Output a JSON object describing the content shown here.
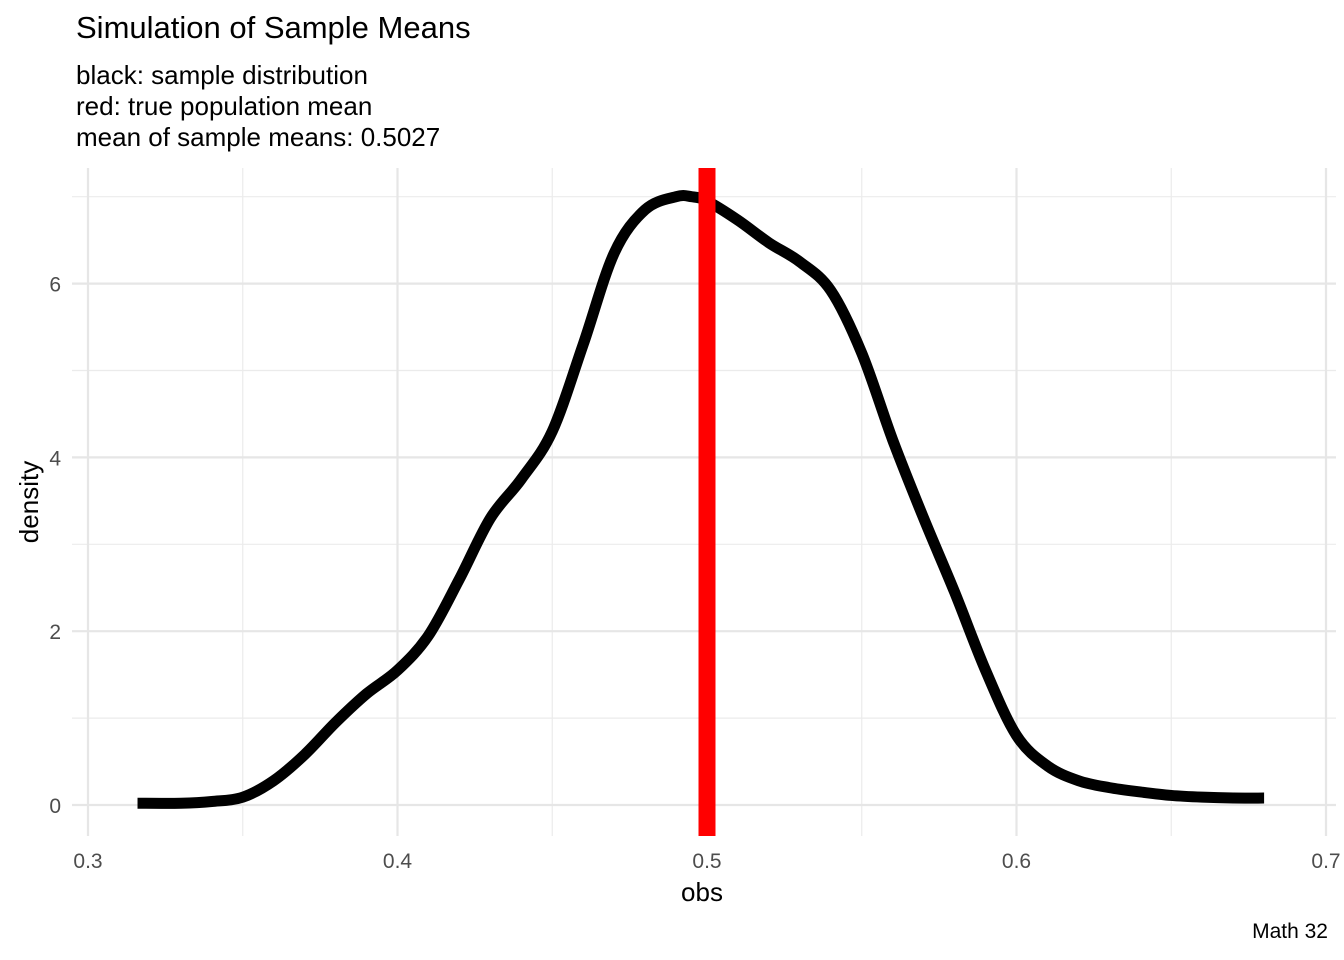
{
  "chart_data": {
    "type": "line",
    "title": "Simulation of Sample Means",
    "subtitle_lines": [
      "black: sample distribution",
      "red: true population mean",
      "mean of sample means:  0.5027"
    ],
    "caption": "Math 32",
    "xlabel": "obs",
    "ylabel": "density",
    "xlim": [
      0.3,
      0.7
    ],
    "ylim": [
      0,
      7.3
    ],
    "x_ticks": [
      0.3,
      0.4,
      0.5,
      0.6,
      0.7
    ],
    "x_tick_labels": [
      "0.3",
      "0.4",
      "0.5",
      "0.6",
      "0.7"
    ],
    "y_ticks": [
      0,
      2,
      4,
      6
    ],
    "y_tick_labels": [
      "0",
      "2",
      "4",
      "6"
    ],
    "grid": true,
    "series": [
      {
        "color": "#000000",
        "x": [
          0.316,
          0.33,
          0.34,
          0.35,
          0.36,
          0.37,
          0.38,
          0.39,
          0.4,
          0.41,
          0.42,
          0.43,
          0.44,
          0.45,
          0.46,
          0.47,
          0.48,
          0.49,
          0.495,
          0.5,
          0.51,
          0.52,
          0.53,
          0.54,
          0.55,
          0.56,
          0.57,
          0.58,
          0.59,
          0.6,
          0.61,
          0.62,
          0.63,
          0.64,
          0.65,
          0.66,
          0.67,
          0.68
        ],
        "y": [
          0.02,
          0.02,
          0.04,
          0.09,
          0.28,
          0.58,
          0.95,
          1.28,
          1.55,
          1.95,
          2.6,
          3.3,
          3.75,
          4.3,
          5.3,
          6.35,
          6.85,
          7.0,
          7.0,
          6.95,
          6.73,
          6.47,
          6.25,
          5.92,
          5.2,
          4.2,
          3.3,
          2.45,
          1.55,
          0.8,
          0.45,
          0.28,
          0.2,
          0.15,
          0.11,
          0.09,
          0.08,
          0.08
        ]
      }
    ],
    "vline": {
      "x": 0.5,
      "color": "#ff0000"
    }
  }
}
